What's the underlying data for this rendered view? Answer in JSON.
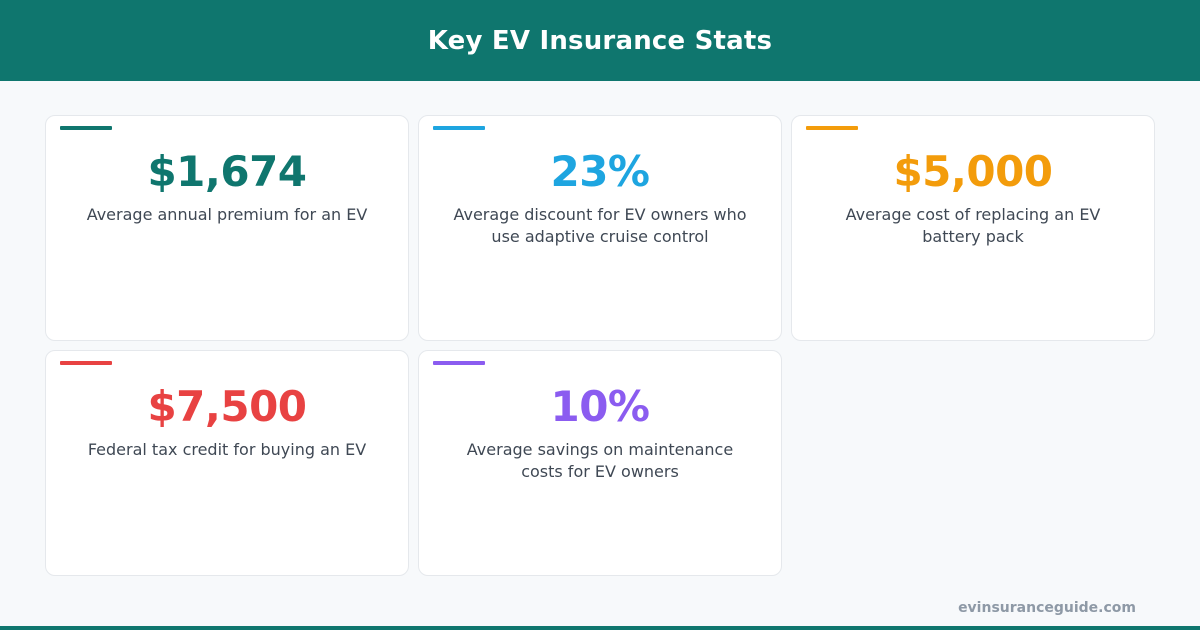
{
  "header": {
    "title": "Key EV Insurance Stats"
  },
  "stats": [
    {
      "value": "$1,674",
      "label": "Average annual premium for an EV",
      "color": "#0f766e"
    },
    {
      "value": "23%",
      "label": "Average discount for EV owners who use adaptive cruise control",
      "color": "#1ea5e0"
    },
    {
      "value": "$5,000",
      "label": "Average cost of replacing an EV battery pack",
      "color": "#f39c0b"
    },
    {
      "value": "$7,500",
      "label": "Federal tax credit for buying an EV",
      "color": "#e84242"
    },
    {
      "value": "10%",
      "label": "Average savings on maintenance costs for EV owners",
      "color": "#8b5cf0"
    }
  ],
  "footer": {
    "url": "evinsuranceguide.com"
  }
}
